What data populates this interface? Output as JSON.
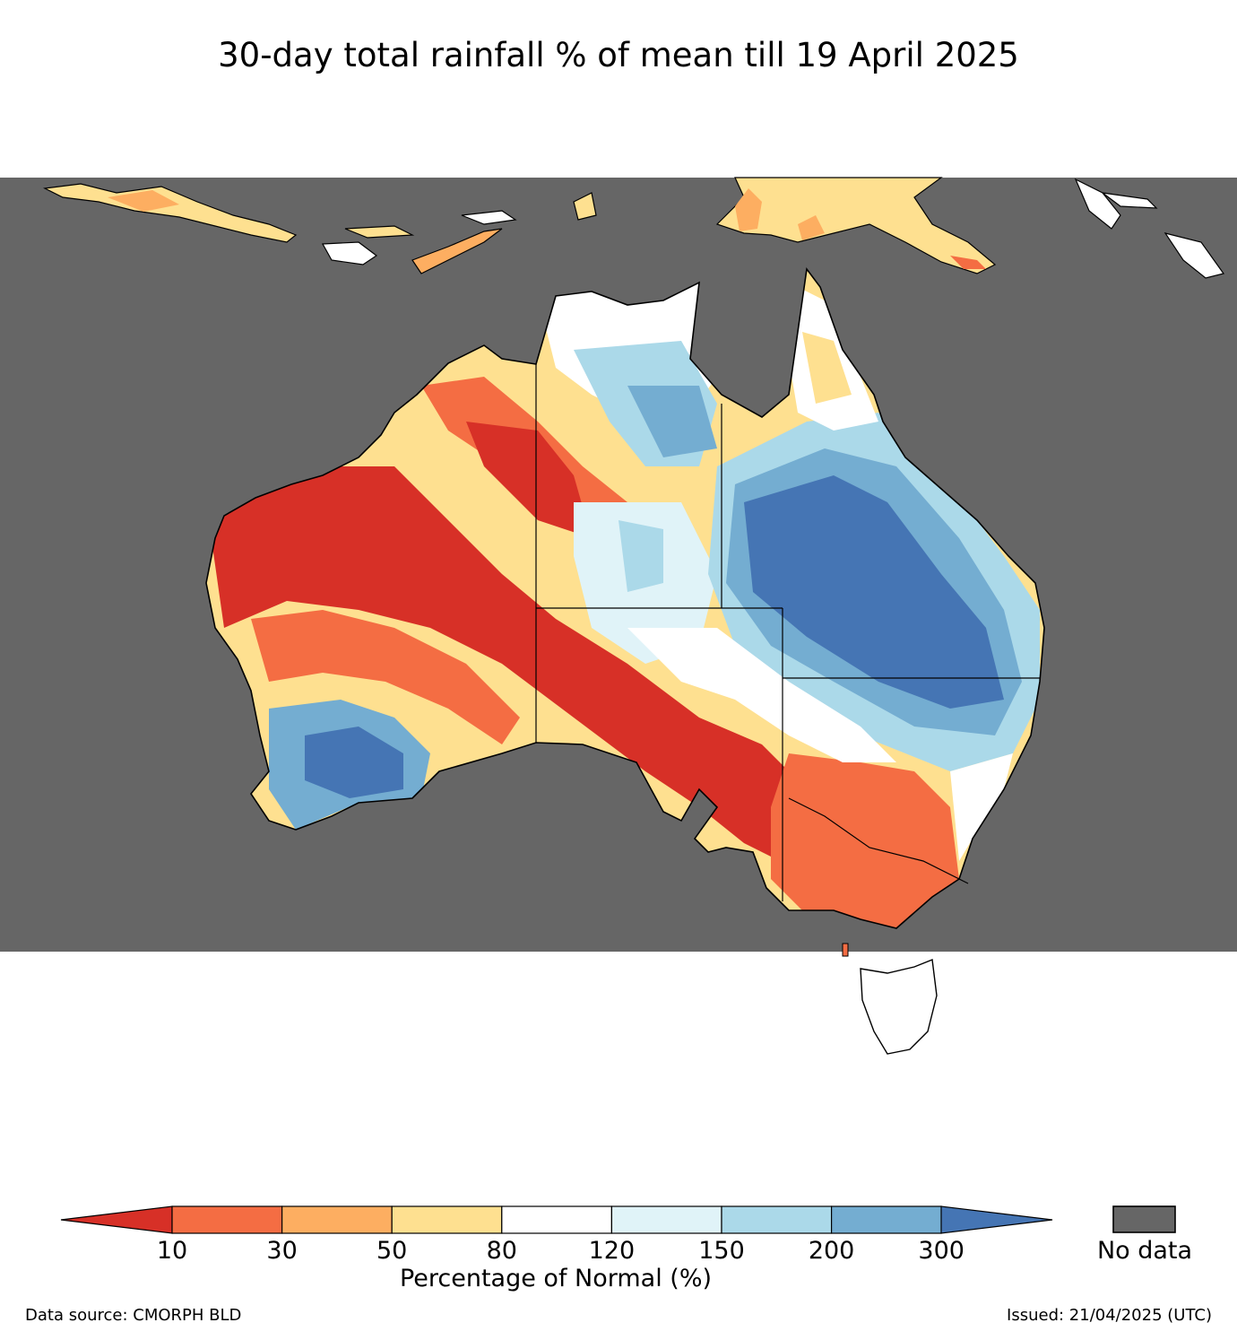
{
  "title": "30-day total rainfall % of mean till 19 April 2025",
  "legend": {
    "label": "Percentage of Normal (%)",
    "ticks": [
      "10",
      "30",
      "50",
      "80",
      "120",
      "150",
      "200",
      "300"
    ],
    "bin_colors": [
      "#d73027",
      "#f46d43",
      "#fdae61",
      "#fee090",
      "#ffffff",
      "#e0f3f8",
      "#abd9e9",
      "#74add1",
      "#4575b4"
    ],
    "nodata_label": "No data",
    "nodata_color": "#666666"
  },
  "footer": {
    "source": "Data source: CMORPH BLD",
    "issued": "Issued: 21/04/2025 (UTC)"
  }
}
